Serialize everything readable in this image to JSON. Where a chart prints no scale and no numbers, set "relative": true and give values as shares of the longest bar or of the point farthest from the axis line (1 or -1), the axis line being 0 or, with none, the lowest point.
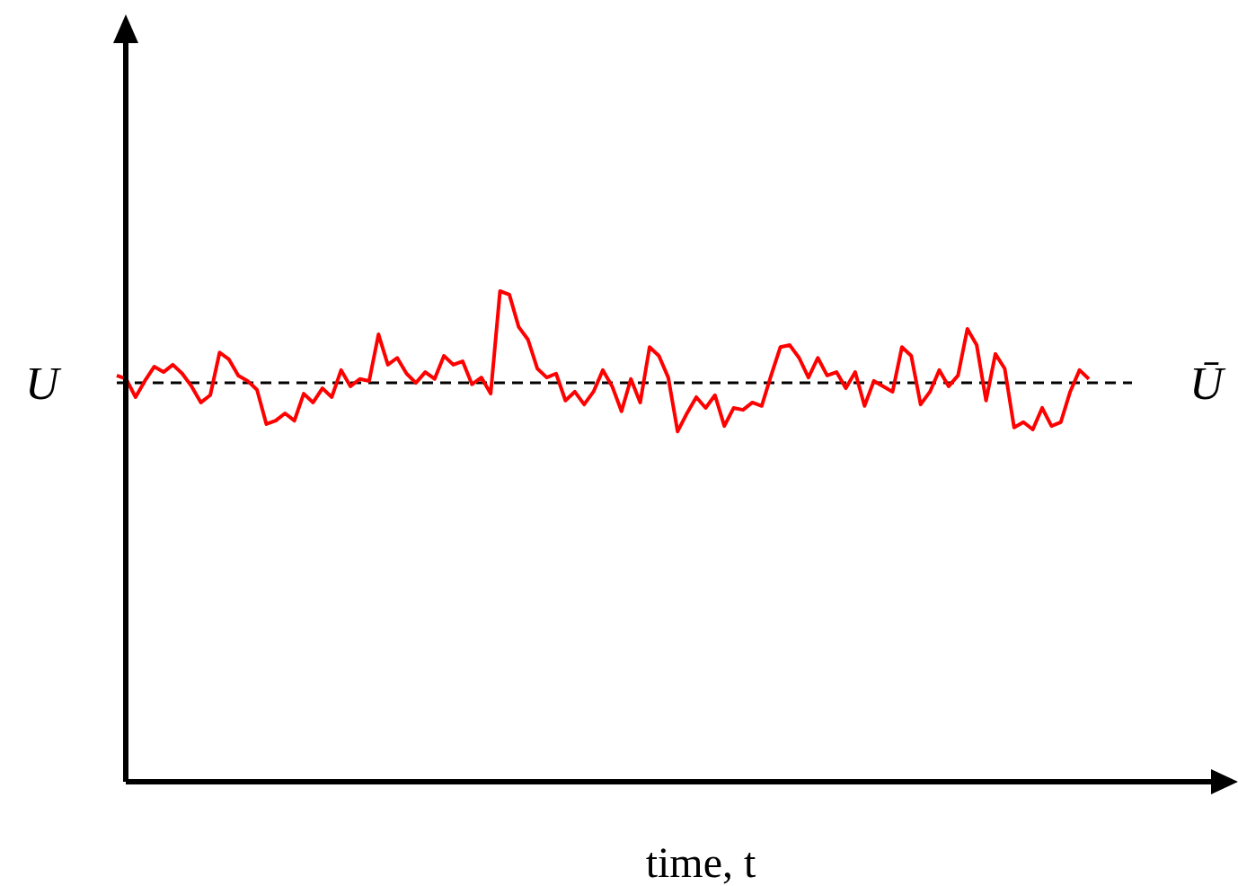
{
  "chart_data": {
    "type": "line",
    "relative": true,
    "xlabel": "time, t",
    "ylabel": "U",
    "categories": [
      null,
      null,
      null,
      null,
      null,
      null,
      null,
      null,
      null,
      null,
      null,
      null,
      null,
      null,
      null,
      null,
      null,
      null,
      null,
      null,
      null,
      null,
      null,
      null,
      null,
      null,
      null,
      null,
      null,
      null,
      null,
      null,
      null,
      null,
      null,
      null,
      null,
      null,
      null,
      null,
      null,
      null,
      null,
      null,
      null,
      null,
      null,
      null,
      null,
      null,
      null,
      null,
      null,
      null,
      null,
      null,
      null,
      null,
      null,
      null,
      null,
      null,
      null,
      null,
      null,
      null,
      null,
      null,
      null,
      null,
      null,
      null,
      null,
      null,
      null,
      null,
      null,
      null,
      null,
      null,
      null,
      null,
      null,
      null,
      null,
      null,
      null,
      null,
      null,
      null,
      null,
      null,
      null,
      null,
      null,
      null,
      null,
      null,
      null,
      null,
      null,
      null,
      null,
      null,
      null
    ],
    "series": [
      {
        "color": "#ff0000",
        "values": [
          0.828,
          0.821,
          0.784,
          0.817,
          0.846,
          0.835,
          0.85,
          0.832,
          0.806,
          0.773,
          0.788,
          0.875,
          0.861,
          0.828,
          0.817,
          0.799,
          0.729,
          0.736,
          0.751,
          0.736,
          0.791,
          0.773,
          0.802,
          0.784,
          0.839,
          0.806,
          0.821,
          0.817,
          0.912,
          0.85,
          0.864,
          0.832,
          0.813,
          0.835,
          0.821,
          0.868,
          0.85,
          0.857,
          0.81,
          0.824,
          0.791,
          1,
          0.993,
          0.927,
          0.901,
          0.842,
          0.824,
          0.832,
          0.777,
          0.795,
          0.769,
          0.795,
          0.839,
          0.806,
          0.755,
          0.821,
          0.773,
          0.886,
          0.868,
          0.824,
          0.714,
          0.751,
          0.784,
          0.762,
          0.788,
          0.725,
          0.762,
          0.758,
          0.773,
          0.766,
          0.828,
          0.886,
          0.89,
          0.864,
          0.824,
          0.864,
          0.828,
          0.835,
          0.802,
          0.835,
          0.766,
          0.817,
          0.806,
          0.795,
          0.886,
          0.868,
          0.769,
          0.795,
          0.839,
          0.806,
          0.828,
          0.923,
          0.89,
          0.777,
          0.872,
          0.842,
          0.722,
          0.733,
          0.718,
          0.762,
          0.725,
          0.733,
          0.795,
          0.839,
          0.821
        ]
      }
    ],
    "ref_lines": [
      {
        "axis": "y",
        "value": 0.813,
        "label": "Ū",
        "color": "#000000",
        "line_style": "dashed"
      }
    ]
  }
}
